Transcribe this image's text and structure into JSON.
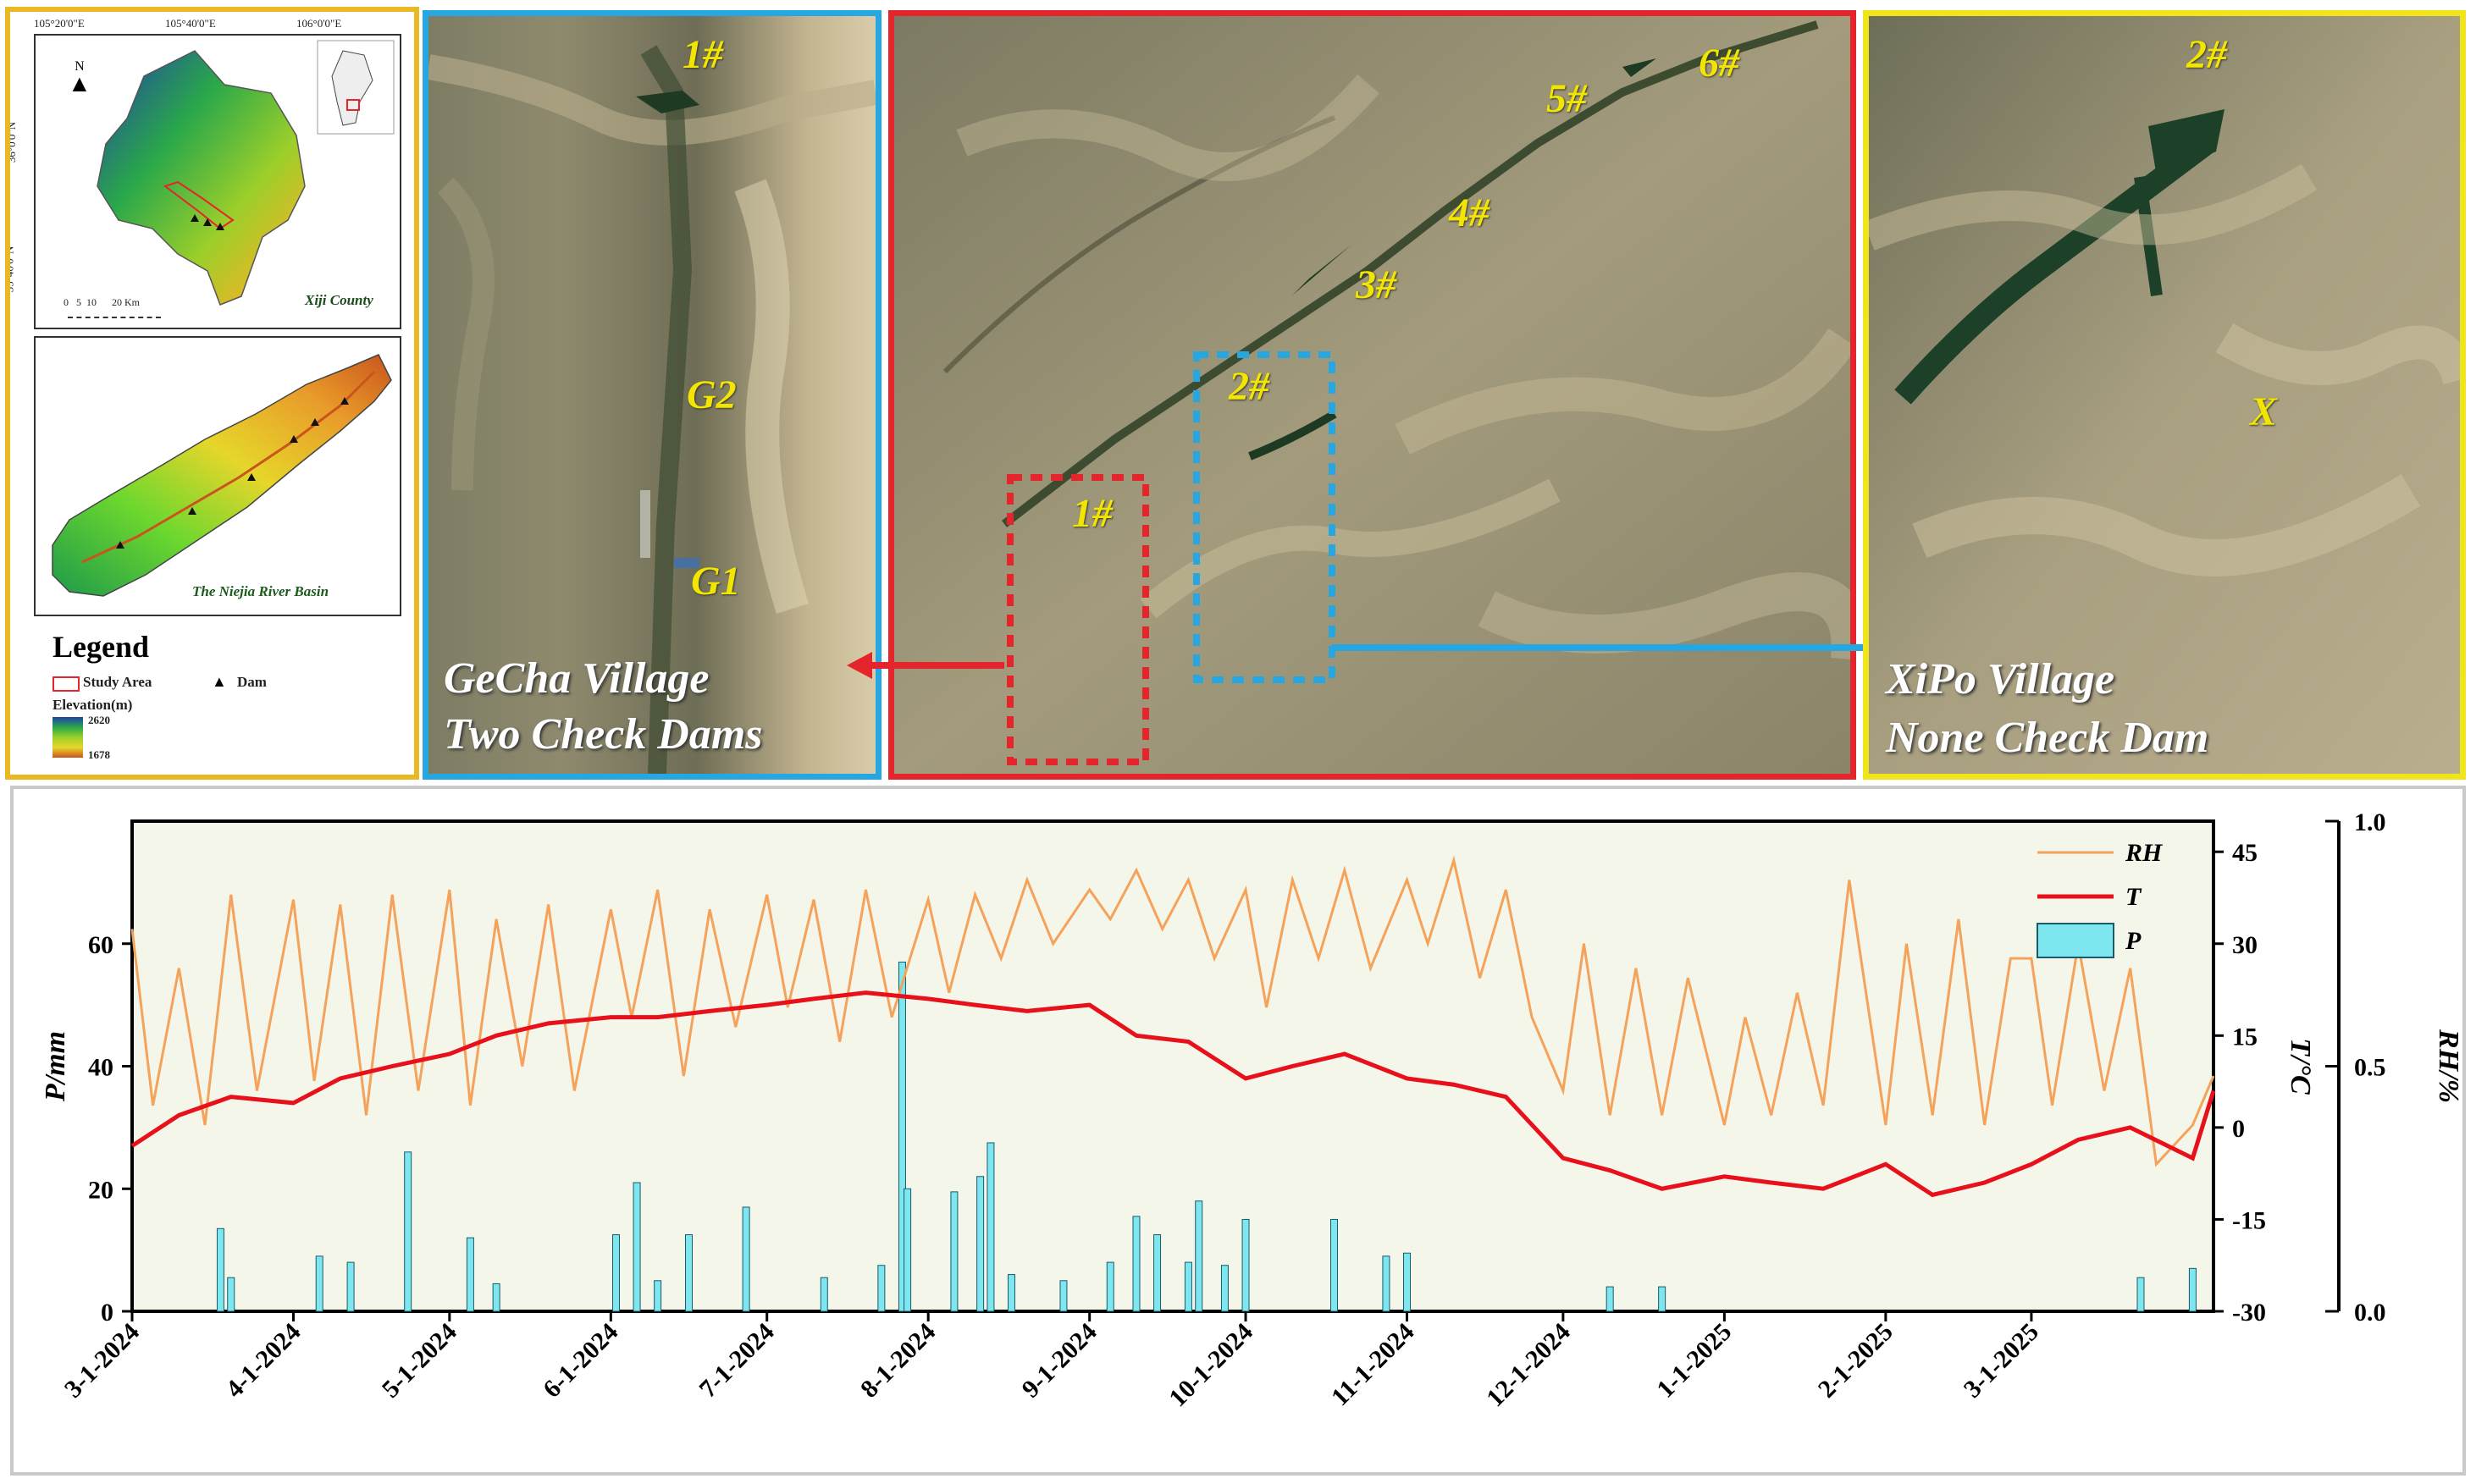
{
  "legend_panel": {
    "map_top": {
      "coords_top": [
        "105°20'0\"E",
        "105°40'0\"E",
        "106°0'0\"E"
      ],
      "coords_left": [
        "36°0'0\"N",
        "35°40'0\"N"
      ],
      "north": "N",
      "scale_text": "0   5  10      20 Km",
      "title": "Xiji County"
    },
    "map_bottom": {
      "title": "The Niejia River Basin"
    },
    "legend": {
      "title": "Legend",
      "study_area": "Study Area",
      "dam": "Dam",
      "elevation_title": "Elevation(m)",
      "elev_high": "2620",
      "elev_low": "1678"
    }
  },
  "gecha_panel": {
    "dam_label": "1#",
    "g2": "G2",
    "g1": "G1",
    "caption_line1": "GeCha Village",
    "caption_line2": "Two Check Dams"
  },
  "study_panel": {
    "dams": [
      "1#",
      "2#",
      "3#",
      "4#",
      "5#",
      "6#"
    ]
  },
  "xipo_panel": {
    "dam_label": "2#",
    "x_label": "X",
    "caption_line1": "XiPo Village",
    "caption_line2": "None Check Dam"
  },
  "colors": {
    "legend_border": "#e8b923",
    "gecha_border": "#27a7e1",
    "study_border": "#e4252b",
    "xipo_border": "#f0e51a",
    "rh_line": "#f5a25a",
    "t_line": "#e8111b",
    "p_bar": "#7de6ee"
  },
  "chart_data": {
    "type": "bar+line",
    "x_tick_labels": [
      "3-1-2024",
      "4-1-2024",
      "5-1-2024",
      "6-1-2024",
      "7-1-2024",
      "8-1-2024",
      "9-1-2024",
      "10-1-2024",
      "11-1-2024",
      "12-1-2024",
      "1-1-2025",
      "2-1-2025",
      "3-1-2025"
    ],
    "x_range": [
      "2024-03-01",
      "2025-04-05"
    ],
    "y_left": {
      "label": "P/mm",
      "range": [
        0,
        80
      ],
      "ticks": [
        0,
        20,
        40,
        60
      ]
    },
    "y_right_inner": {
      "label": "T/°C",
      "range": [
        -30,
        50
      ],
      "ticks": [
        -30,
        -15,
        0,
        15,
        30,
        45
      ]
    },
    "y_right_outer": {
      "label": "RH/%",
      "range": [
        0.0,
        1.0
      ],
      "ticks": [
        "0.0",
        "0.5",
        "1.0"
      ]
    },
    "legend": [
      "RH",
      "T",
      "P"
    ],
    "legend_position": "top-right",
    "grid": false,
    "series": [
      {
        "name": "RH",
        "axis": "RH",
        "dates": [
          "2024-03-01",
          "2024-03-05",
          "2024-03-10",
          "2024-03-15",
          "2024-03-20",
          "2024-03-25",
          "2024-04-01",
          "2024-04-05",
          "2024-04-10",
          "2024-04-15",
          "2024-04-20",
          "2024-04-25",
          "2024-05-01",
          "2024-05-05",
          "2024-05-10",
          "2024-05-15",
          "2024-05-20",
          "2024-05-25",
          "2024-06-01",
          "2024-06-05",
          "2024-06-10",
          "2024-06-15",
          "2024-06-20",
          "2024-06-25",
          "2024-07-01",
          "2024-07-05",
          "2024-07-10",
          "2024-07-15",
          "2024-07-20",
          "2024-07-25",
          "2024-08-01",
          "2024-08-05",
          "2024-08-10",
          "2024-08-15",
          "2024-08-20",
          "2024-08-25",
          "2024-09-01",
          "2024-09-05",
          "2024-09-10",
          "2024-09-15",
          "2024-09-20",
          "2024-09-25",
          "2024-10-01",
          "2024-10-05",
          "2024-10-10",
          "2024-10-15",
          "2024-10-20",
          "2024-10-25",
          "2024-11-01",
          "2024-11-05",
          "2024-11-10",
          "2024-11-15",
          "2024-11-20",
          "2024-11-25",
          "2024-12-01",
          "2024-12-05",
          "2024-12-10",
          "2024-12-15",
          "2024-12-20",
          "2024-12-25",
          "2025-01-01",
          "2025-01-05",
          "2025-01-10",
          "2025-01-15",
          "2025-01-20",
          "2025-01-25",
          "2025-02-01",
          "2025-02-05",
          "2025-02-10",
          "2025-02-15",
          "2025-02-20",
          "2025-02-25",
          "2025-03-01",
          "2025-03-05",
          "2025-03-10",
          "2025-03-15",
          "2025-03-20",
          "2025-03-25",
          "2025-04-01",
          "2025-04-05"
        ],
        "values": [
          0.78,
          0.42,
          0.7,
          0.38,
          0.85,
          0.45,
          0.84,
          0.47,
          0.83,
          0.4,
          0.85,
          0.45,
          0.86,
          0.42,
          0.8,
          0.5,
          0.83,
          0.45,
          0.82,
          0.6,
          0.86,
          0.48,
          0.82,
          0.58,
          0.85,
          0.62,
          0.84,
          0.55,
          0.86,
          0.6,
          0.84,
          0.65,
          0.85,
          0.72,
          0.88,
          0.75,
          0.86,
          0.8,
          0.9,
          0.78,
          0.88,
          0.72,
          0.86,
          0.62,
          0.88,
          0.72,
          0.9,
          0.7,
          0.88,
          0.75,
          0.92,
          0.68,
          0.86,
          0.6,
          0.45,
          0.75,
          0.4,
          0.7,
          0.4,
          0.68,
          0.38,
          0.6,
          0.4,
          0.65,
          0.42,
          0.88,
          0.38,
          0.75,
          0.4,
          0.8,
          0.38,
          0.72,
          0.72,
          0.42,
          0.75,
          0.45,
          0.7,
          0.3,
          0.38,
          0.48
        ]
      },
      {
        "name": "T",
        "axis": "T",
        "dates": [
          "2024-03-01",
          "2024-03-10",
          "2024-03-20",
          "2024-04-01",
          "2024-04-10",
          "2024-04-20",
          "2024-05-01",
          "2024-05-10",
          "2024-05-20",
          "2024-06-01",
          "2024-06-10",
          "2024-06-20",
          "2024-07-01",
          "2024-07-10",
          "2024-07-20",
          "2024-08-01",
          "2024-08-10",
          "2024-08-20",
          "2024-09-01",
          "2024-09-10",
          "2024-09-20",
          "2024-10-01",
          "2024-10-10",
          "2024-10-20",
          "2024-11-01",
          "2024-11-10",
          "2024-11-20",
          "2024-12-01",
          "2024-12-10",
          "2024-12-20",
          "2025-01-01",
          "2025-01-10",
          "2025-01-20",
          "2025-02-01",
          "2025-02-10",
          "2025-02-20",
          "2025-03-01",
          "2025-03-10",
          "2025-03-20",
          "2025-04-01",
          "2025-04-05"
        ],
        "values": [
          -3,
          2,
          5,
          4,
          8,
          10,
          12,
          15,
          17,
          18,
          18,
          19,
          20,
          21,
          22,
          21,
          20,
          19,
          20,
          15,
          14,
          8,
          10,
          12,
          8,
          7,
          5,
          -5,
          -7,
          -10,
          -8,
          -9,
          -10,
          -6,
          -11,
          -9,
          -6,
          -2,
          0,
          -5,
          6
        ]
      },
      {
        "name": "P",
        "axis": "P",
        "type": "bar",
        "dates": [
          "2024-03-18",
          "2024-03-20",
          "2024-04-06",
          "2024-04-12",
          "2024-04-23",
          "2024-05-05",
          "2024-05-10",
          "2024-06-02",
          "2024-06-06",
          "2024-06-10",
          "2024-06-16",
          "2024-06-27",
          "2024-07-12",
          "2024-07-23",
          "2024-07-27",
          "2024-07-28",
          "2024-08-06",
          "2024-08-11",
          "2024-08-13",
          "2024-08-17",
          "2024-08-27",
          "2024-09-05",
          "2024-09-10",
          "2024-09-14",
          "2024-09-20",
          "2024-09-22",
          "2024-09-27",
          "2024-10-01",
          "2024-10-18",
          "2024-10-28",
          "2024-11-01",
          "2024-12-10",
          "2024-12-20",
          "2025-03-22",
          "2025-04-01"
        ],
        "values": [
          13.5,
          5.5,
          9,
          8,
          26,
          12,
          4.5,
          12.5,
          21,
          5,
          12.5,
          17,
          5.5,
          7.5,
          57,
          20,
          19.5,
          22,
          27.5,
          6,
          5,
          8,
          15.5,
          12.5,
          8,
          18,
          7.5,
          15,
          15,
          9,
          9.5,
          4,
          4,
          5.5,
          7
        ]
      }
    ]
  }
}
